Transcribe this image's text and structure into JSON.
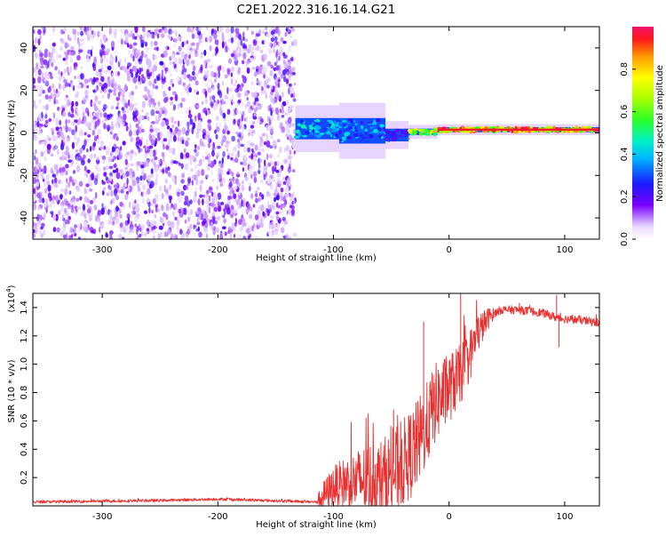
{
  "title": "C2E1.2022.316.16.14.G21",
  "chart_data": [
    {
      "type": "heatmap",
      "name": "spectrogram",
      "xlabel": "Height of straight line (km)",
      "ylabel": "Frequency (Hz)",
      "xlim": [
        -360,
        130
      ],
      "ylim": [
        -50,
        50
      ],
      "xticks": [
        -300,
        -200,
        -100,
        0,
        100
      ],
      "yticks": [
        -40,
        -20,
        0,
        20,
        40
      ],
      "noise_region_x": [
        -360,
        -133
      ],
      "signal_segments": [
        {
          "x0": -133,
          "x1": -95,
          "y_center": 2,
          "y_halfwidth": 5,
          "level": 0.45
        },
        {
          "x0": -95,
          "x1": -55,
          "y_center": 1,
          "y_halfwidth": 6,
          "level": 0.4
        },
        {
          "x0": -55,
          "x1": -35,
          "y_center": -1,
          "y_halfwidth": 3,
          "level": 0.3
        },
        {
          "x0": -35,
          "x1": -10,
          "y_center": 0.5,
          "y_halfwidth": 1.5,
          "level": 0.8
        },
        {
          "x0": -10,
          "x1": 130,
          "y_center": 1.5,
          "y_halfwidth": 1.2,
          "level": 0.95
        }
      ],
      "colorbar": {
        "label": "Normalized spectral amplitude",
        "min": 0.0,
        "max": 1.0,
        "ticks": [
          "0.0",
          "0.2",
          "0.4",
          "0.6",
          "0.8"
        ]
      }
    },
    {
      "type": "line",
      "name": "snr",
      "xlabel": "Height of straight line (km)",
      "ylabel": "SNR (10 * v/v)",
      "multiplier": "(x10",
      "multiplier_exp": "4",
      "multiplier_close": ")",
      "xlim": [
        -360,
        130
      ],
      "ylim": [
        0,
        1.5
      ],
      "xticks": [
        -300,
        -200,
        -100,
        0,
        100
      ],
      "yticks": [
        "0.2",
        "0.4",
        "0.6",
        "0.8",
        "1.0",
        "1.2",
        "1.4"
      ],
      "color": "#e83030",
      "envelope": [
        {
          "x": -360,
          "y": 0.03
        },
        {
          "x": -250,
          "y": 0.04
        },
        {
          "x": -200,
          "y": 0.05
        },
        {
          "x": -160,
          "y": 0.04
        },
        {
          "x": -115,
          "y": 0.03
        },
        {
          "x": -110,
          "y": 0.08
        },
        {
          "x": -100,
          "y": 0.17
        },
        {
          "x": -90,
          "y": 0.2
        },
        {
          "x": -80,
          "y": 0.22
        },
        {
          "x": -70,
          "y": 0.24
        },
        {
          "x": -60,
          "y": 0.23
        },
        {
          "x": -50,
          "y": 0.28
        },
        {
          "x": -40,
          "y": 0.36
        },
        {
          "x": -30,
          "y": 0.46
        },
        {
          "x": -20,
          "y": 0.62
        },
        {
          "x": -12,
          "y": 0.78
        },
        {
          "x": 0,
          "y": 0.88
        },
        {
          "x": 10,
          "y": 0.97
        },
        {
          "x": 18,
          "y": 1.1
        },
        {
          "x": 25,
          "y": 1.25
        },
        {
          "x": 35,
          "y": 1.35
        },
        {
          "x": 45,
          "y": 1.39
        },
        {
          "x": 60,
          "y": 1.39
        },
        {
          "x": 80,
          "y": 1.37
        },
        {
          "x": 95,
          "y": 1.33
        },
        {
          "x": 110,
          "y": 1.32
        },
        {
          "x": 130,
          "y": 1.3
        }
      ],
      "noise_amp": [
        {
          "x": -360,
          "y": 0.01
        },
        {
          "x": -115,
          "y": 0.01
        },
        {
          "x": -110,
          "y": 0.1
        },
        {
          "x": -60,
          "y": 0.3
        },
        {
          "x": -30,
          "y": 0.32
        },
        {
          "x": -10,
          "y": 0.28
        },
        {
          "x": 20,
          "y": 0.18
        },
        {
          "x": 40,
          "y": 0.03
        },
        {
          "x": 130,
          "y": 0.03
        }
      ],
      "spikes": [
        {
          "x": -22,
          "y": 1.3
        },
        {
          "x": 10,
          "y": 1.5
        },
        {
          "x": 93,
          "y": 1.49
        },
        {
          "x": 95,
          "y": 1.12
        },
        {
          "x": -48,
          "y": 0.68
        }
      ]
    }
  ]
}
